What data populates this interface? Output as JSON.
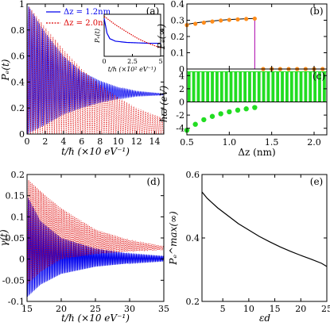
{
  "chart_data": [
    {
      "panel": "(a)",
      "type": "line",
      "xlabel": "t/ℏ (×10 eV⁻¹)",
      "ylabel": "Pₑ(t)",
      "xlim": [
        0,
        15
      ],
      "ylim": [
        0,
        1
      ],
      "xticks": [
        "0",
        "2",
        "4",
        "6",
        "8",
        "10",
        "12",
        "14"
      ],
      "yticks": [
        "0",
        "0.2",
        "0.4",
        "0.6",
        "0.8",
        "1"
      ],
      "series": [
        {
          "name": "Δz = 1.2nm",
          "color": "#0000ee",
          "style": "solid",
          "envelope_x": [
            0,
            2,
            4,
            6,
            8,
            10,
            12,
            15
          ],
          "upper": [
            1.0,
            0.78,
            0.6,
            0.48,
            0.41,
            0.36,
            0.33,
            0.31
          ],
          "lower": [
            0.0,
            0.07,
            0.15,
            0.2,
            0.24,
            0.27,
            0.29,
            0.3
          ]
        },
        {
          "name": "Δz = 2.0nm",
          "color": "#dd0000",
          "style": "dotted",
          "envelope_x": [
            0,
            2,
            4,
            6,
            8,
            10,
            12,
            15
          ],
          "upper": [
            1.0,
            0.82,
            0.65,
            0.5,
            0.38,
            0.28,
            0.2,
            0.12
          ],
          "lower": [
            0.0,
            0.0,
            0.0,
            0.0,
            0.0,
            0.0,
            0.0,
            0.0
          ]
        }
      ],
      "inset": {
        "xlabel": "t/ℏ (×10² eV⁻¹)",
        "ylabel": "Pₑ(t)",
        "xlim": [
          0,
          5
        ],
        "ylim": [
          0,
          1
        ],
        "xticks": [
          "0",
          "2.5",
          "5"
        ],
        "series": [
          {
            "name": "Δz = 1.2nm",
            "x": [
              0,
              0.25,
              0.5,
              1,
              2,
              3,
              4,
              5
            ],
            "y": [
              0.9,
              0.55,
              0.42,
              0.36,
              0.33,
              0.32,
              0.31,
              0.31
            ]
          },
          {
            "name": "Δz = 2.0nm",
            "x": [
              0,
              0.5,
              1,
              2,
              3,
              4,
              5
            ],
            "y": [
              0.95,
              0.85,
              0.75,
              0.58,
              0.42,
              0.3,
              0.2
            ]
          }
        ]
      }
    },
    {
      "panel": "(b)",
      "type": "line",
      "ylabel": "Pₑ(∞)",
      "xlim": [
        0.5,
        2.15
      ],
      "ylim": [
        0,
        0.4
      ],
      "yticks": [
        "0",
        "0.1",
        "0.2",
        "0.3",
        "0.4"
      ],
      "line_x": [
        0.5,
        0.6,
        0.7,
        0.8,
        0.9,
        1.0,
        1.1,
        1.2,
        1.3,
        1.3,
        2.15
      ],
      "line_y": [
        0.275,
        0.283,
        0.29,
        0.295,
        0.3,
        0.304,
        0.307,
        0.309,
        0.311,
        0.0,
        0.0
      ],
      "points_x": [
        0.5,
        0.6,
        0.7,
        0.8,
        0.9,
        1.0,
        1.1,
        1.2,
        1.3,
        1.4,
        1.5,
        1.6,
        1.7,
        1.8,
        1.9,
        2.0,
        2.1
      ],
      "points_y": [
        0.27,
        0.278,
        0.285,
        0.292,
        0.298,
        0.302,
        0.305,
        0.308,
        0.31,
        0.0,
        0.0,
        0.0,
        0.0,
        0.0,
        0.0,
        0.0,
        0.0
      ],
      "line_color": "#000000",
      "point_color": "#ff8c1a",
      "drop_color": "#aa00aa"
    },
    {
      "panel": "(c)",
      "type": "scatter",
      "xlabel": "Δz (nm)",
      "ylabel": "ℏϖ (eV)",
      "xlim": [
        0.5,
        2.15
      ],
      "ylim": [
        -5,
        5
      ],
      "xticks": [
        "0.5",
        "1.0",
        "1.5",
        "2.0"
      ],
      "yticks": [
        "-4",
        "-2",
        "0",
        "2",
        "4"
      ],
      "points_x": [
        0.5,
        0.6,
        0.7,
        0.8,
        0.9,
        1.0,
        1.1,
        1.2,
        1.3
      ],
      "points_y": [
        -4.3,
        -3.4,
        -2.7,
        -2.2,
        -1.8,
        -1.5,
        -1.25,
        -1.05,
        -0.85
      ],
      "bars_x_start": 0.5,
      "bars_x_end": 2.15,
      "bars_count": 30,
      "bars_ymin": 0,
      "bars_ymax": 4.6,
      "color": "#22dd22"
    },
    {
      "panel": "(d)",
      "type": "line",
      "xlabel": "t/ℏ (×10 eV⁻¹)",
      "ylabel": "γ(t)",
      "xlim": [
        15,
        35
      ],
      "ylim": [
        -0.1,
        0.2
      ],
      "xticks": [
        "15",
        "20",
        "25",
        "30",
        "35"
      ],
      "yticks": [
        "-0.1",
        "-0.05",
        "0",
        "0.05",
        "0.1",
        "0.15",
        "0.2"
      ],
      "series": [
        {
          "name": "Δz = 1.2nm",
          "color": "#0000ee",
          "style": "solid",
          "envelope_x": [
            15,
            17,
            20,
            25,
            30,
            35
          ],
          "upper": [
            0.15,
            0.09,
            0.05,
            0.025,
            0.013,
            0.007
          ],
          "lower": [
            -0.09,
            -0.06,
            -0.035,
            -0.018,
            -0.01,
            -0.005
          ]
        },
        {
          "name": "Δz = 2.0nm",
          "color": "#dd0000",
          "style": "dotted",
          "envelope_x": [
            15,
            17,
            20,
            25,
            30,
            35
          ],
          "upper": [
            0.19,
            0.16,
            0.12,
            0.07,
            0.045,
            0.03
          ],
          "lower": [
            -0.06,
            -0.03,
            0.0,
            0.012,
            0.018,
            0.022
          ]
        }
      ]
    },
    {
      "panel": "(e)",
      "type": "line",
      "xlabel": "εd",
      "ylabel": "Pₑ^max(∞)",
      "xlim": [
        1,
        25
      ],
      "ylim": [
        0.2,
        0.6
      ],
      "xticks": [
        "5",
        "10",
        "15",
        "20",
        "25"
      ],
      "yticks": [
        "0.2",
        "0.4",
        "0.6"
      ],
      "x": [
        1,
        2,
        4,
        6,
        8,
        10,
        12,
        14,
        16,
        18,
        20,
        22,
        24,
        25
      ],
      "y": [
        0.545,
        0.525,
        0.495,
        0.47,
        0.445,
        0.425,
        0.405,
        0.388,
        0.372,
        0.358,
        0.345,
        0.333,
        0.32,
        0.31
      ],
      "color": "#000000"
    }
  ]
}
